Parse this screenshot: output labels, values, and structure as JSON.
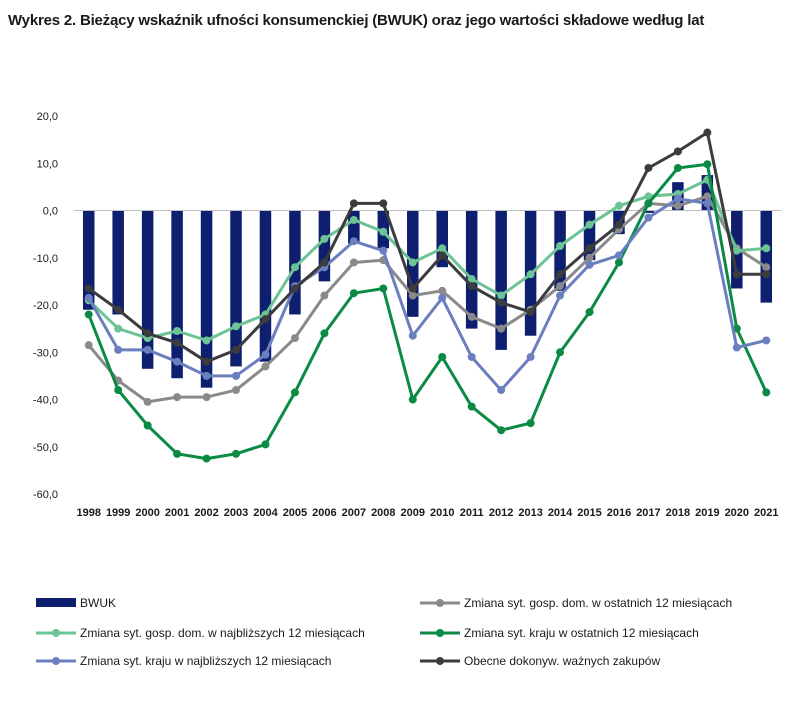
{
  "chart_data": {
    "type": "bar",
    "title": "Wykres 2. Bieżący wskaźnik ufności konsumenckiej (BWUK) oraz jego wartości składowe według lat",
    "xlabel": "",
    "ylabel": "",
    "ylim": [
      -60,
      20
    ],
    "yticks": [
      20,
      10,
      0,
      -10,
      -20,
      -30,
      -40,
      -50,
      -60
    ],
    "ytick_labels": [
      "20,0",
      "10,0",
      "0,0",
      "-10,0",
      "-20,0",
      "-30,0",
      "-40,0",
      "-50,0",
      "-60,0"
    ],
    "grid": false,
    "legend_position": "bottom",
    "categories": [
      "1998",
      "1999",
      "2000",
      "2001",
      "2002",
      "2003",
      "2004",
      "2005",
      "2006",
      "2007",
      "2008",
      "2009",
      "2010",
      "2011",
      "2012",
      "2013",
      "2014",
      "2015",
      "2016",
      "2017",
      "2018",
      "2019",
      "2020",
      "2021"
    ],
    "series": [
      {
        "name": "BWUK",
        "kind": "bar",
        "color": "#0d1f6e",
        "values": [
          -21,
          -22,
          -33.5,
          -35.5,
          -37.5,
          -33,
          -32,
          -22,
          -15,
          -7,
          -8,
          -22.5,
          -12,
          -25,
          -29.5,
          -26.5,
          -17,
          -10.5,
          -5,
          -0.5,
          6,
          7.5,
          -16.5,
          -19.5
        ]
      },
      {
        "name": "Zmiana syt. gosp. dom. w ostatnich 12 miesiącach",
        "kind": "line",
        "color": "#8a8a8a",
        "values": [
          -28.5,
          -36,
          -40.5,
          -39.5,
          -39.5,
          -38,
          -33,
          -27,
          -18,
          -11,
          -10.5,
          -18,
          -17,
          -22.5,
          -25,
          -21,
          -16,
          -10,
          -4,
          1.5,
          1,
          3,
          -8,
          -12
        ]
      },
      {
        "name": "Zmiana syt. gosp. dom. w najbliższych 12 miesiącach",
        "kind": "line",
        "color": "#6cc394",
        "values": [
          -19,
          -25,
          -27,
          -25.5,
          -27.5,
          -24.5,
          -22,
          -12,
          -6,
          -2,
          -4.5,
          -11,
          -8,
          -14.5,
          -18,
          -13.5,
          -7.5,
          -3,
          1,
          3,
          3.5,
          6.5,
          -8.5,
          -8
        ]
      },
      {
        "name": "Zmiana syt. kraju w ostatnich 12 miesiącach",
        "kind": "line",
        "color": "#0b8a44",
        "values": [
          -22,
          -38,
          -45.5,
          -51.5,
          -52.5,
          -51.5,
          -49.5,
          -38.5,
          -26,
          -17.5,
          -16.5,
          -40,
          -31,
          -41.5,
          -46.5,
          -45,
          -30,
          -21.5,
          -11,
          1.5,
          9,
          9.8,
          -25,
          -38.5
        ]
      },
      {
        "name": "Zmiana syt. kraju w najbliższych 12 miesiącach",
        "kind": "line",
        "color": "#6b7fbf",
        "values": [
          -18.5,
          -29.5,
          -29.5,
          -32,
          -35,
          -35,
          -30.5,
          -16,
          -12,
          -6.5,
          -8.5,
          -26.5,
          -18.5,
          -31,
          -38,
          -31,
          -18,
          -11.5,
          -9.5,
          -1.5,
          2.5,
          1.5,
          -29,
          -27.5
        ]
      },
      {
        "name": "Obecne dokonyw. ważnych zakupów",
        "kind": "line",
        "color": "#3c3c3c",
        "values": [
          -16.5,
          -21,
          -26,
          -28,
          -32,
          -29.5,
          -23,
          -16.5,
          -11,
          1.5,
          1.5,
          -16.5,
          -9.5,
          -16,
          -19.5,
          -21.5,
          -13.5,
          -8,
          -3,
          9,
          12.5,
          16.5,
          -13.5,
          -13.5
        ]
      }
    ]
  }
}
